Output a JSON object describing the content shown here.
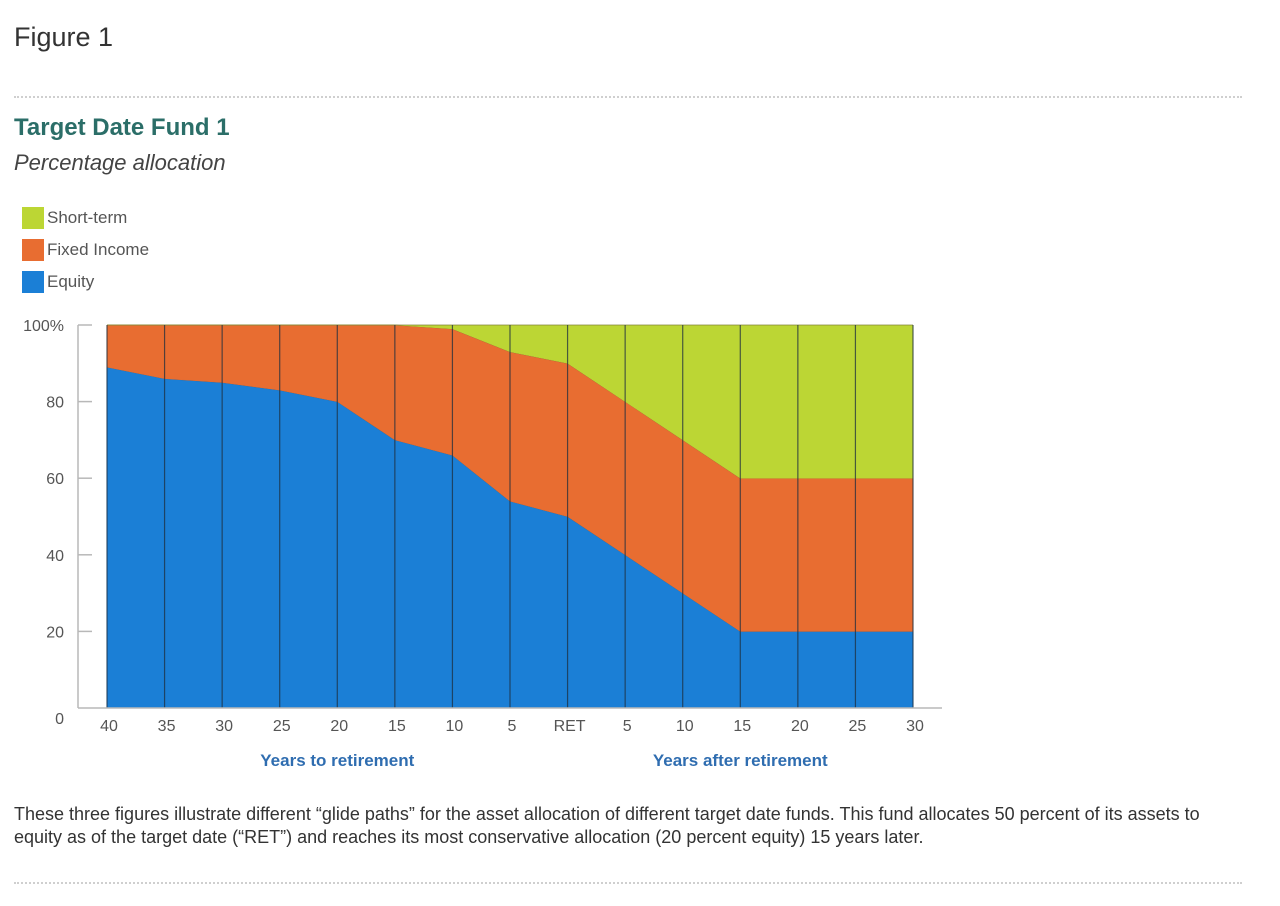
{
  "figure_label": "Figure 1",
  "caption": "These three figures illustrate different “glide paths” for the asset allocation of different target date funds. This fund allocates 50 percent of its assets to equity as of the target date (“RET”) and reaches its most conservative allocation (20 percent equity) 15 years later.",
  "chart_data": {
    "type": "area",
    "title": "Target Date Fund 1",
    "subtitle": "Percentage allocation",
    "stacked": true,
    "categories": [
      "40",
      "35",
      "30",
      "25",
      "20",
      "15",
      "10",
      "5",
      "RET",
      "5",
      "10",
      "15",
      "20",
      "25",
      "30"
    ],
    "group_labels": [
      "Years to retirement",
      "Years after retirement"
    ],
    "ylim": [
      0,
      100
    ],
    "yticks": [
      0,
      20,
      40,
      60,
      80,
      100
    ],
    "ytick_labels": [
      "0",
      "20",
      "40",
      "60",
      "80",
      "100%"
    ],
    "legend_placement": "top-left",
    "series": [
      {
        "name": "Equity",
        "color": "#1b7fd6",
        "values": [
          89,
          86,
          85,
          83,
          80,
          70,
          66,
          54,
          50,
          40,
          30,
          20,
          20,
          20,
          20
        ]
      },
      {
        "name": "Fixed Income",
        "color": "#e86d31",
        "values": [
          11,
          14,
          15,
          17,
          20,
          30,
          33,
          39,
          40,
          40,
          40,
          40,
          40,
          40,
          40
        ]
      },
      {
        "name": "Short-term",
        "color": "#bcd634",
        "values": [
          0,
          0,
          0,
          0,
          0,
          0,
          1,
          7,
          10,
          20,
          30,
          40,
          40,
          40,
          40
        ]
      }
    ],
    "legend_order": [
      "Short-term",
      "Fixed Income",
      "Equity"
    ]
  }
}
